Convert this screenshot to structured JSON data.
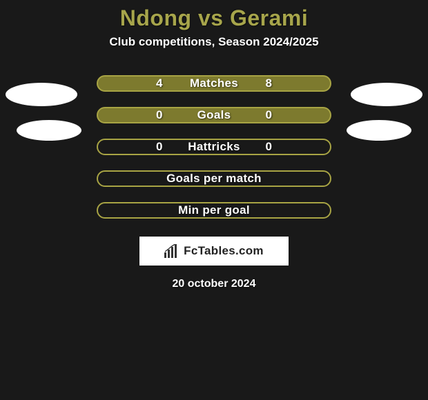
{
  "background_color": "#191919",
  "title": {
    "text": "Ndong vs Gerami",
    "color": "#a7a54b",
    "fontsize": 32,
    "fontweight": 800
  },
  "subtitle": {
    "text": "Club competitions, Season 2024/2025",
    "color": "#ffffff",
    "fontsize": 17
  },
  "bars": {
    "track_color": "#a8a444",
    "border_color": "#a8a444",
    "left_fill_color": "#7d7a2e",
    "right_fill_color": "#7d7a2e",
    "label_color": "#ffffff",
    "value_color": "#ffffff",
    "border_radius": 12,
    "label_fontsize": 17
  },
  "rows": [
    {
      "label": "Matches",
      "left_value": "4",
      "right_value": "8",
      "left_pct": 31,
      "right_pct": 69,
      "show_values": true
    },
    {
      "label": "Goals",
      "left_value": "0",
      "right_value": "0",
      "left_pct": 50,
      "right_pct": 50,
      "show_values": true
    },
    {
      "label": "Hattricks",
      "left_value": "0",
      "right_value": "0",
      "left_pct": 0,
      "right_pct": 0,
      "show_values": true
    },
    {
      "label": "Goals per match",
      "left_value": "",
      "right_value": "",
      "left_pct": 0,
      "right_pct": 0,
      "show_values": false
    },
    {
      "label": "Min per goal",
      "left_value": "",
      "right_value": "",
      "left_pct": 0,
      "right_pct": 0,
      "show_values": false
    }
  ],
  "ellipses": {
    "color": "#ffffff"
  },
  "brand": {
    "box_bg": "#ffffff",
    "text": "FcTables.com",
    "text_color": "#222222",
    "icon_color": "#333333",
    "fontsize": 17
  },
  "date": {
    "text": "20 october 2024",
    "color": "#ffffff",
    "fontsize": 16
  }
}
